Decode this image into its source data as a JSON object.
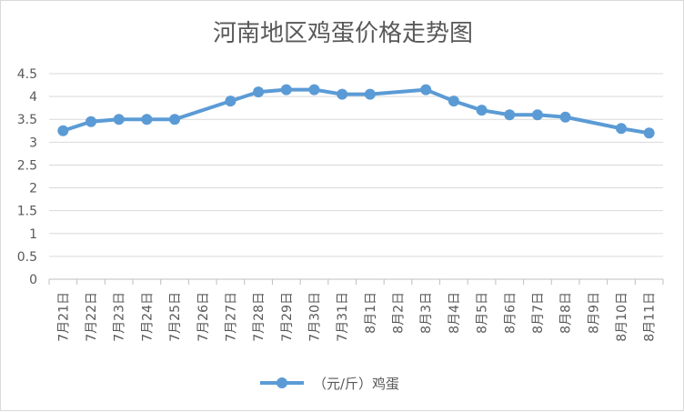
{
  "chart_data": {
    "type": "line",
    "title": "河南地区鸡蛋价格走势图",
    "categories": [
      "7月21日",
      "7月22日",
      "7月23日",
      "7月24日",
      "7月25日",
      "7月26日",
      "7月27日",
      "7月28日",
      "7月29日",
      "7月30日",
      "7月31日",
      "8月1日",
      "8月2日",
      "8月3日",
      "8月4日",
      "8月5日",
      "8月6日",
      "8月7日",
      "8月8日",
      "8月9日",
      "8月10日",
      "8月11日"
    ],
    "series": [
      {
        "name": "（元/斤）鸡蛋",
        "values": [
          3.25,
          3.45,
          3.5,
          3.5,
          3.5,
          null,
          3.9,
          4.1,
          4.15,
          4.15,
          4.05,
          4.05,
          null,
          4.15,
          3.9,
          3.7,
          3.6,
          3.6,
          3.55,
          null,
          3.3,
          3.2
        ],
        "color": "#5b9bd5"
      }
    ],
    "y_ticks": [
      "0",
      "0.5",
      "1",
      "1.5",
      "2",
      "2.5",
      "3",
      "3.5",
      "4",
      "4.5"
    ],
    "ylim": [
      0,
      4.5
    ],
    "grid": true,
    "legend_position": "bottom",
    "gaps_connected": true
  }
}
